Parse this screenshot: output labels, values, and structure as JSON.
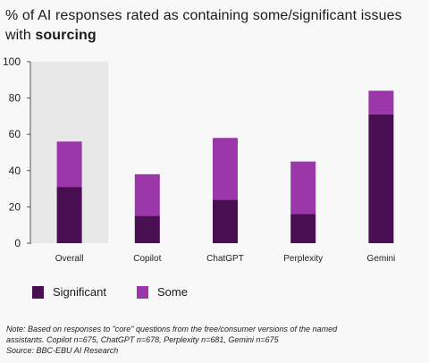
{
  "title": {
    "prefix": "% of AI responses rated as containing some/significant issues with ",
    "emphasis": "sourcing"
  },
  "chart_data": {
    "type": "bar",
    "stacked": true,
    "categories": [
      "Overall",
      "Copilot",
      "ChatGPT",
      "Perplexity",
      "Gemini"
    ],
    "series": [
      {
        "name": "Significant",
        "values": [
          31,
          15,
          24,
          16,
          71
        ],
        "color": "#4a0f52"
      },
      {
        "name": "Some",
        "values": [
          25,
          23,
          34,
          29,
          13
        ],
        "color": "#9b37a8"
      }
    ],
    "ylim": [
      0,
      100
    ],
    "yticks": [
      0,
      20,
      40,
      60,
      80,
      100
    ],
    "highlight_category": "Overall",
    "highlight_color": "#e8e8e8",
    "grid": false,
    "legend_position": "bottom-left"
  },
  "legend": [
    {
      "label": "Significant",
      "color": "#4a0f52"
    },
    {
      "label": "Some",
      "color": "#9b37a8"
    }
  ],
  "note": {
    "line1": "Note: Based on responses to \"core\" questions from the free/consumer versions of the named",
    "line2": "assistants. Copilot n=675, ChatGPT n=678, Perplexity n=681, Gemini n=675",
    "line3": " Source: BBC-EBU AI Research"
  }
}
